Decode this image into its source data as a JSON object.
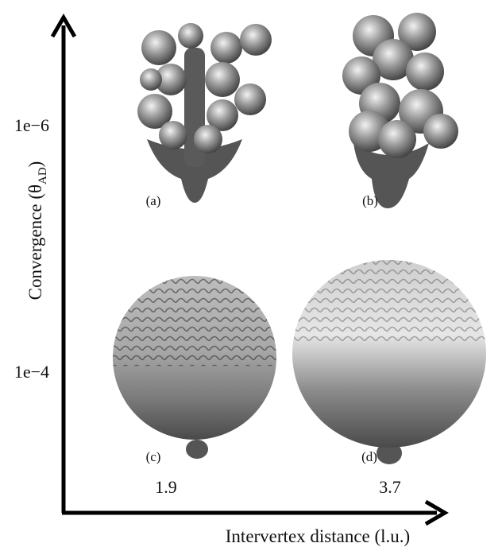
{
  "x_axis": {
    "label": "Intervertex distance (l.u.)",
    "ticks": [
      "1.9",
      "3.7"
    ]
  },
  "y_axis": {
    "label_prefix": "Convergence (θ",
    "label_subscript": "AD",
    "label_suffix": ")",
    "ticks": [
      "1e−6",
      "1e−4"
    ]
  },
  "panels": [
    "(a)",
    "(b)",
    "(c)",
    "(d)"
  ]
}
